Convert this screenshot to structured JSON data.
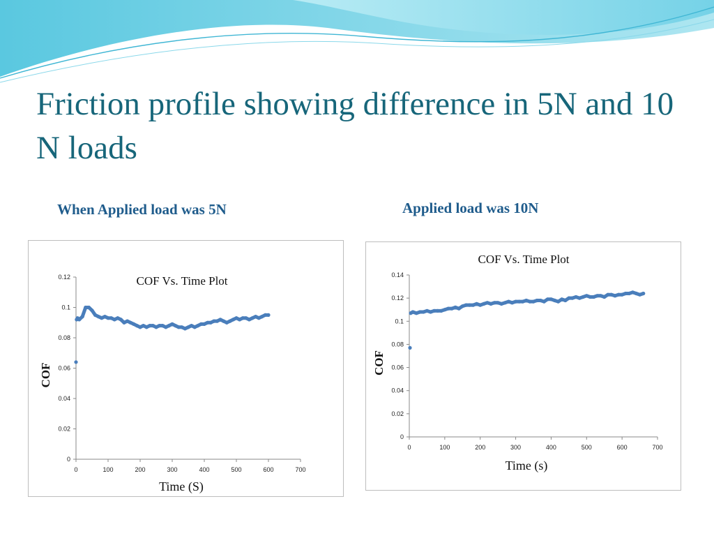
{
  "slide": {
    "title": "Friction profile showing difference in 5N and 10 N loads",
    "left_label": "When Applied load was 5N",
    "right_label": "Applied load was 10N",
    "accent_color": "#17667a",
    "label_color": "#1f5c8c"
  },
  "chart_data": [
    {
      "type": "scatter",
      "title": "COF Vs. Time Plot",
      "xlabel": "Time (S)",
      "ylabel": "COF",
      "xlim": [
        0,
        700
      ],
      "ylim": [
        0,
        0.12
      ],
      "xticks": [
        "0",
        "100",
        "200",
        "300",
        "400",
        "500",
        "600",
        "700"
      ],
      "yticks": [
        "0",
        "0.02",
        "0.04",
        "0.06",
        "0.08",
        "0.1",
        "0.12"
      ],
      "grid": false,
      "legend": "none",
      "color": "#4a7ebb",
      "series": [
        {
          "x": [
            0,
            2,
            5,
            10,
            20,
            30,
            40,
            50,
            60,
            70,
            80,
            90,
            100,
            110,
            120,
            130,
            140,
            150,
            160,
            170,
            180,
            190,
            200,
            210,
            220,
            230,
            240,
            250,
            260,
            270,
            280,
            290,
            300,
            310,
            320,
            330,
            340,
            350,
            360,
            370,
            380,
            390,
            400,
            410,
            420,
            430,
            440,
            450,
            460,
            470,
            480,
            490,
            500,
            510,
            520,
            530,
            540,
            550,
            560,
            570,
            580,
            590,
            600
          ],
          "y": [
            0.064,
            0.092,
            0.093,
            0.092,
            0.094,
            0.1,
            0.1,
            0.098,
            0.095,
            0.094,
            0.093,
            0.094,
            0.093,
            0.093,
            0.092,
            0.093,
            0.092,
            0.09,
            0.091,
            0.09,
            0.089,
            0.088,
            0.087,
            0.088,
            0.087,
            0.088,
            0.088,
            0.087,
            0.088,
            0.088,
            0.087,
            0.088,
            0.089,
            0.088,
            0.087,
            0.087,
            0.086,
            0.087,
            0.088,
            0.087,
            0.088,
            0.089,
            0.089,
            0.09,
            0.09,
            0.091,
            0.091,
            0.092,
            0.091,
            0.09,
            0.091,
            0.092,
            0.093,
            0.092,
            0.093,
            0.093,
            0.092,
            0.093,
            0.094,
            0.093,
            0.094,
            0.095,
            0.095
          ]
        }
      ]
    },
    {
      "type": "scatter",
      "title": "COF Vs. Time Plot",
      "xlabel": "Time (s)",
      "ylabel": "COF",
      "xlim": [
        0,
        700
      ],
      "ylim": [
        0,
        0.14
      ],
      "xticks": [
        "0",
        "100",
        "200",
        "300",
        "400",
        "500",
        "600",
        "700"
      ],
      "yticks": [
        "0",
        "0.02",
        "0.04",
        "0.06",
        "0.08",
        "0.1",
        "0.12",
        "0.14"
      ],
      "grid": false,
      "legend": "none",
      "color": "#4a7ebb",
      "series": [
        {
          "x": [
            2,
            4,
            10,
            20,
            30,
            40,
            50,
            60,
            70,
            80,
            90,
            100,
            110,
            120,
            130,
            140,
            150,
            160,
            170,
            180,
            190,
            200,
            210,
            220,
            230,
            240,
            250,
            260,
            270,
            280,
            290,
            300,
            310,
            320,
            330,
            340,
            350,
            360,
            370,
            380,
            390,
            400,
            410,
            420,
            430,
            440,
            450,
            460,
            470,
            480,
            490,
            500,
            510,
            520,
            530,
            540,
            550,
            560,
            570,
            580,
            590,
            600,
            610,
            620,
            630,
            640,
            650,
            660
          ],
          "y": [
            0.077,
            0.107,
            0.108,
            0.107,
            0.108,
            0.108,
            0.109,
            0.108,
            0.109,
            0.109,
            0.109,
            0.11,
            0.111,
            0.111,
            0.112,
            0.111,
            0.113,
            0.114,
            0.114,
            0.114,
            0.115,
            0.114,
            0.115,
            0.116,
            0.115,
            0.116,
            0.116,
            0.115,
            0.116,
            0.117,
            0.116,
            0.117,
            0.117,
            0.117,
            0.118,
            0.117,
            0.117,
            0.118,
            0.118,
            0.117,
            0.119,
            0.119,
            0.118,
            0.117,
            0.119,
            0.118,
            0.12,
            0.12,
            0.121,
            0.12,
            0.121,
            0.122,
            0.121,
            0.121,
            0.122,
            0.122,
            0.121,
            0.123,
            0.123,
            0.122,
            0.123,
            0.123,
            0.124,
            0.124,
            0.125,
            0.124,
            0.123,
            0.124
          ]
        }
      ]
    }
  ]
}
